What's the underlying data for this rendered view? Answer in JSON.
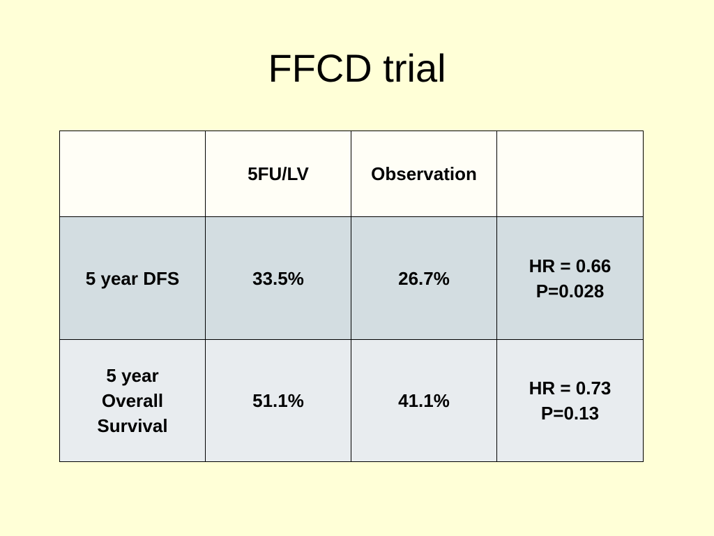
{
  "slide": {
    "title": "FFCD trial"
  },
  "table": {
    "headers": [
      "",
      "5FU/LV",
      "Observation",
      ""
    ],
    "rows": [
      {
        "label": "5 year DFS",
        "fu_lv": "33.5%",
        "observation": "26.7%",
        "stats": "HR = 0.66\nP=0.028"
      },
      {
        "label": "5 year\nOverall\nSurvival",
        "fu_lv": "51.1%",
        "observation": "41.1%",
        "stats": "HR = 0.73\nP=0.13"
      }
    ]
  },
  "colors": {
    "background": "#ffffd7",
    "header_row": "#fffef6",
    "row_1": "#d3dde1",
    "row_2": "#e8ecef"
  }
}
